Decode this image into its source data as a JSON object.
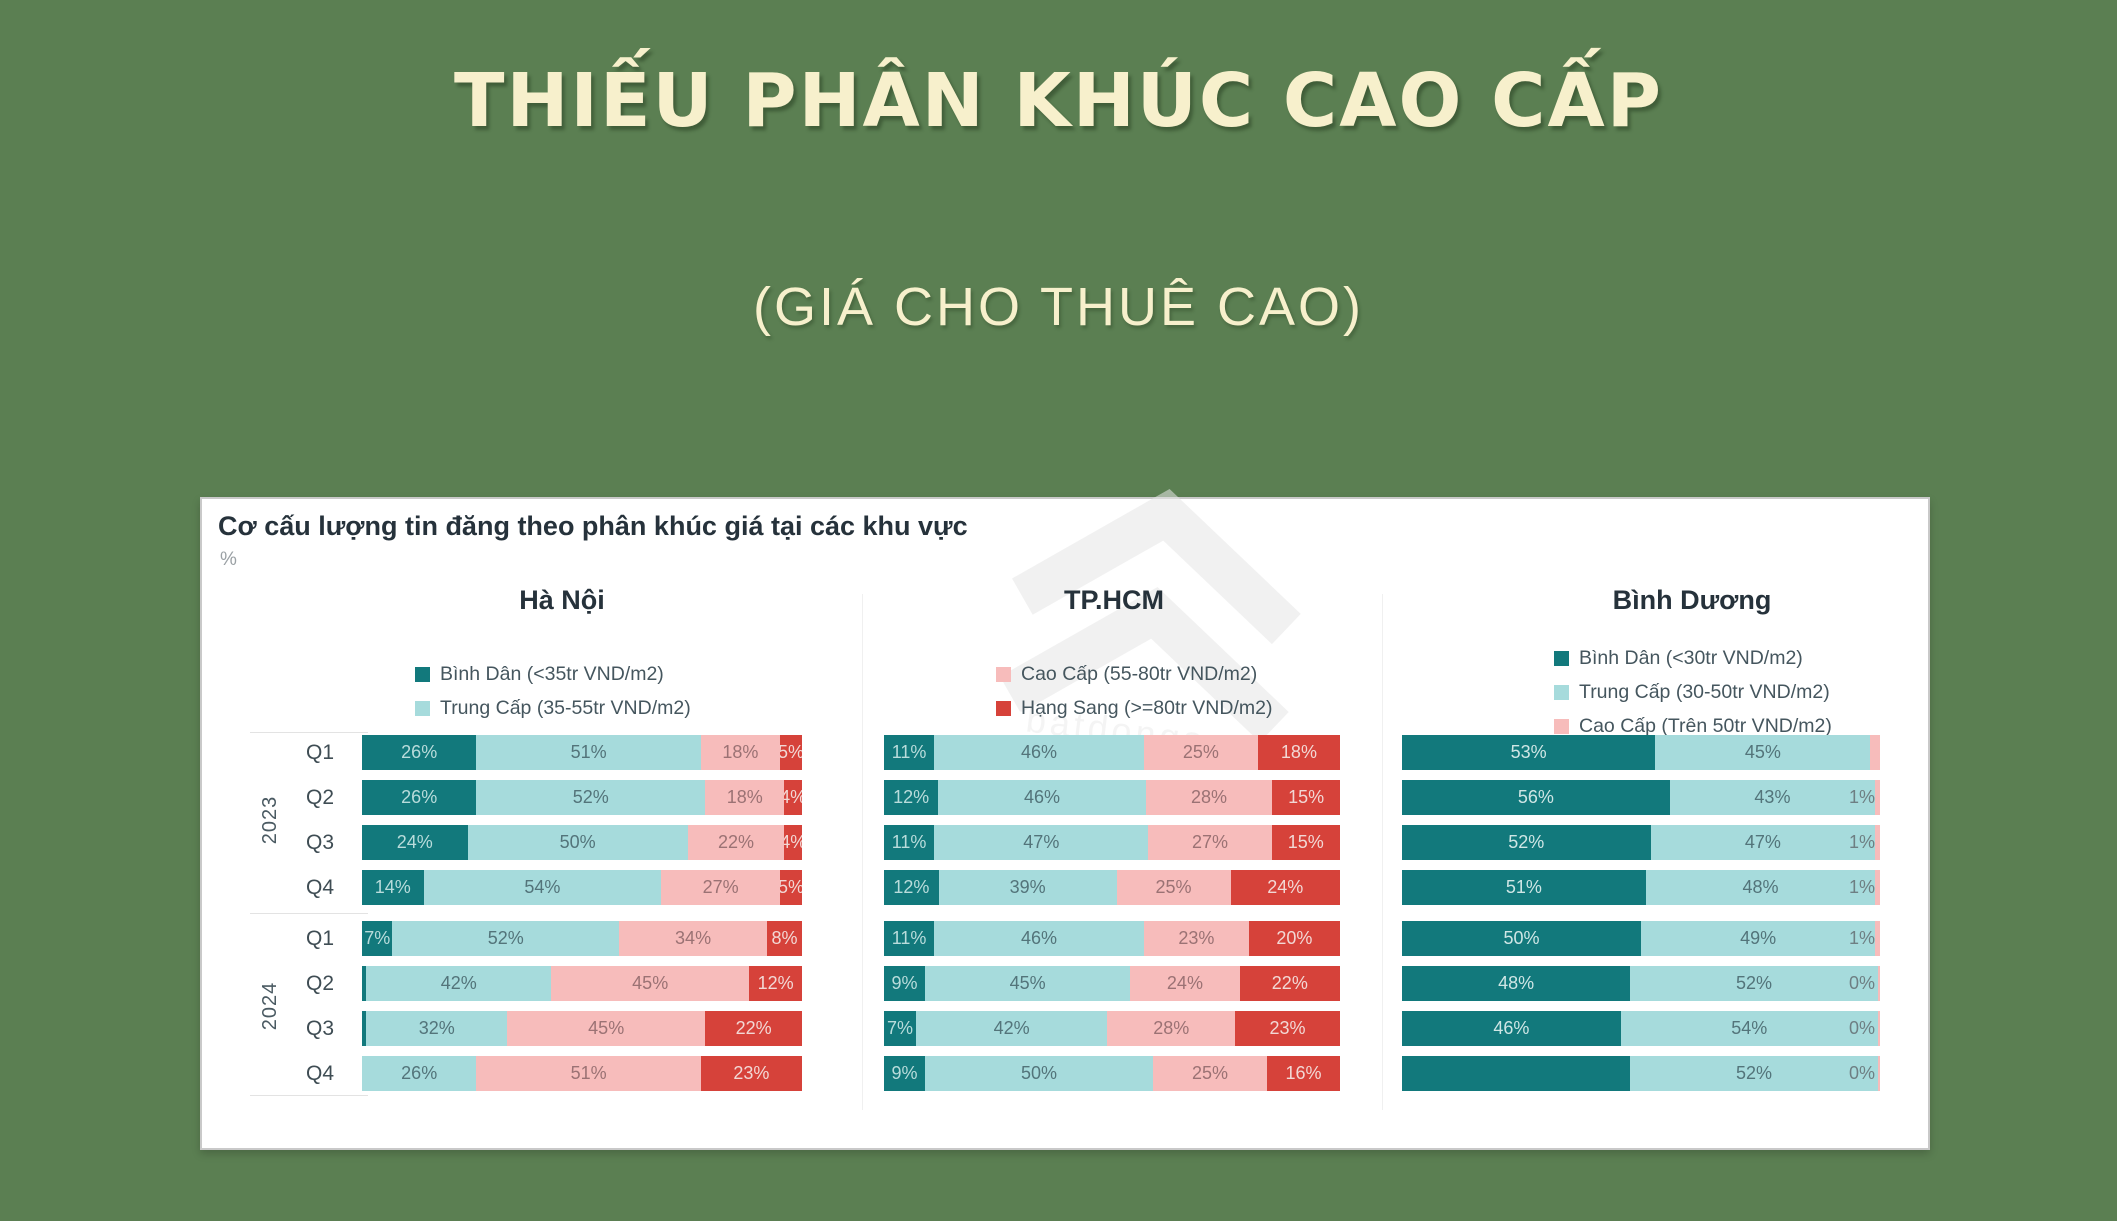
{
  "slide": {
    "title": "THIẾU PHÂN KHÚC CAO CẤP",
    "subtitle": "(GIÁ CHO THUÊ CAO)"
  },
  "colors": {
    "background": "#5b7f52",
    "title_text": "#f7f0cc",
    "panel_background": "#ffffff",
    "segment_dark_teal": "#12797c",
    "segment_light_teal": "#a6dbdc",
    "segment_pink": "#f7bcbb",
    "segment_red": "#d6423a"
  },
  "watermark": {
    "logo": "house-chevrons-icon",
    "text": "batdongsan"
  },
  "chart_data": {
    "type": "bar",
    "variant": "horizontal-stacked-100",
    "title": "Cơ cấu lượng tin đăng theo phân khúc giá tại các khu vực",
    "unit": "%",
    "grid": false,
    "legend_position": "top-per-region",
    "year_groups": [
      {
        "year": "2023",
        "quarters": [
          "Q1",
          "Q2",
          "Q3",
          "Q4"
        ]
      },
      {
        "year": "2024",
        "quarters": [
          "Q1",
          "Q2",
          "Q3",
          "Q4"
        ]
      }
    ],
    "regions": [
      {
        "name": "Hà Nội",
        "legend": [
          {
            "label": "Bình Dân (<35tr VND/m2)",
            "color": "#12797c"
          },
          {
            "label": "Trung Cấp (35-55tr VND/m2)",
            "color": "#a6dbdc"
          }
        ],
        "segment_colors": [
          "#12797c",
          "#a6dbdc",
          "#f7bcbb",
          "#d6423a"
        ],
        "label_colors": [
          "#b9dcdb",
          "#53747a",
          "#9b7274",
          "#f2d8d5"
        ],
        "rows": [
          {
            "year": "2023",
            "quarter": "Q1",
            "values": [
              26,
              51,
              18,
              5
            ],
            "labels": [
              "26%",
              "51%",
              "18%",
              "5%"
            ]
          },
          {
            "year": "2023",
            "quarter": "Q2",
            "values": [
              26,
              52,
              18,
              4
            ],
            "labels": [
              "26%",
              "52%",
              "18%",
              "4%"
            ]
          },
          {
            "year": "2023",
            "quarter": "Q3",
            "values": [
              24,
              50,
              22,
              4
            ],
            "labels": [
              "24%",
              "50%",
              "22%",
              "4%"
            ]
          },
          {
            "year": "2023",
            "quarter": "Q4",
            "values": [
              14,
              54,
              27,
              5
            ],
            "labels": [
              "14%",
              "54%",
              "27%",
              "5%"
            ]
          },
          {
            "year": "2024",
            "quarter": "Q1",
            "values": [
              7,
              52,
              34,
              8
            ],
            "labels": [
              "7%",
              "52%",
              "34%",
              "8%"
            ]
          },
          {
            "year": "2024",
            "quarter": "Q2",
            "values": [
              1,
              42,
              45,
              12
            ],
            "labels": [
              "",
              "42%",
              "45%",
              "12%"
            ]
          },
          {
            "year": "2024",
            "quarter": "Q3",
            "values": [
              1,
              32,
              45,
              22
            ],
            "labels": [
              "",
              "32%",
              "45%",
              "22%"
            ]
          },
          {
            "year": "2024",
            "quarter": "Q4",
            "values": [
              0,
              26,
              51,
              23
            ],
            "labels": [
              "",
              "26%",
              "51%",
              "23%"
            ]
          }
        ]
      },
      {
        "name": "TP.HCM",
        "legend": [
          {
            "label": "Cao Cấp (55-80tr VND/m2)",
            "color": "#f7bcbb"
          },
          {
            "label": "Hạng Sang (>=80tr VND/m2)",
            "color": "#d6423a"
          }
        ],
        "segment_colors": [
          "#12797c",
          "#a6dbdc",
          "#f7bcbb",
          "#d6423a"
        ],
        "label_colors": [
          "#b9dcdb",
          "#53747a",
          "#9b7274",
          "#f2d8d5"
        ],
        "rows": [
          {
            "year": "2023",
            "quarter": "Q1",
            "values": [
              11,
              46,
              25,
              18
            ],
            "labels": [
              "11%",
              "46%",
              "25%",
              "18%"
            ]
          },
          {
            "year": "2023",
            "quarter": "Q2",
            "values": [
              12,
              46,
              28,
              15
            ],
            "labels": [
              "12%",
              "46%",
              "28%",
              "15%"
            ]
          },
          {
            "year": "2023",
            "quarter": "Q3",
            "values": [
              11,
              47,
              27,
              15
            ],
            "labels": [
              "11%",
              "47%",
              "27%",
              "15%"
            ]
          },
          {
            "year": "2023",
            "quarter": "Q4",
            "values": [
              12,
              39,
              25,
              24
            ],
            "labels": [
              "12%",
              "39%",
              "25%",
              "24%"
            ]
          },
          {
            "year": "2024",
            "quarter": "Q1",
            "values": [
              11,
              46,
              23,
              20
            ],
            "labels": [
              "11%",
              "46%",
              "23%",
              "20%"
            ]
          },
          {
            "year": "2024",
            "quarter": "Q2",
            "values": [
              9,
              45,
              24,
              22
            ],
            "labels": [
              "9%",
              "45%",
              "24%",
              "22%"
            ]
          },
          {
            "year": "2024",
            "quarter": "Q3",
            "values": [
              7,
              42,
              28,
              23
            ],
            "labels": [
              "7%",
              "42%",
              "28%",
              "23%"
            ]
          },
          {
            "year": "2024",
            "quarter": "Q4",
            "values": [
              9,
              50,
              25,
              16
            ],
            "labels": [
              "9%",
              "50%",
              "25%",
              "16%"
            ]
          }
        ]
      },
      {
        "name": "Bình Dương",
        "legend": [
          {
            "label": "Bình Dân (<30tr VND/m2)",
            "color": "#12797c"
          },
          {
            "label": "Trung Cấp (30-50tr VND/m2)",
            "color": "#a6dbdc"
          },
          {
            "label": "Cao Cấp (Trên 50tr VND/m2)",
            "color": "#f7bcbb"
          }
        ],
        "segment_colors": [
          "#12797c",
          "#a6dbdc",
          "#f7bcbb"
        ],
        "label_colors": [
          "#cfe6e5",
          "#53747a",
          "#6e7f83"
        ],
        "rows": [
          {
            "year": "2023",
            "quarter": "Q1",
            "values": [
              53,
              45,
              2
            ],
            "labels": [
              "53%",
              "45%",
              ""
            ]
          },
          {
            "year": "2023",
            "quarter": "Q2",
            "values": [
              56,
              43,
              1
            ],
            "labels": [
              "56%",
              "43%",
              "1%"
            ]
          },
          {
            "year": "2023",
            "quarter": "Q3",
            "values": [
              52,
              47,
              1
            ],
            "labels": [
              "52%",
              "47%",
              "1%"
            ]
          },
          {
            "year": "2023",
            "quarter": "Q4",
            "values": [
              51,
              48,
              1
            ],
            "labels": [
              "51%",
              "48%",
              "1%"
            ]
          },
          {
            "year": "2024",
            "quarter": "Q1",
            "values": [
              50,
              49,
              1
            ],
            "labels": [
              "50%",
              "49%",
              "1%"
            ]
          },
          {
            "year": "2024",
            "quarter": "Q2",
            "values": [
              48,
              52,
              0
            ],
            "labels": [
              "48%",
              "52%",
              "0%"
            ]
          },
          {
            "year": "2024",
            "quarter": "Q3",
            "values": [
              46,
              54,
              0
            ],
            "labels": [
              "46%",
              "54%",
              "0%"
            ]
          },
          {
            "year": "2024",
            "quarter": "Q4",
            "values": [
              48,
              52,
              0
            ],
            "labels": [
              "",
              "52%",
              "0%"
            ]
          }
        ]
      }
    ]
  }
}
